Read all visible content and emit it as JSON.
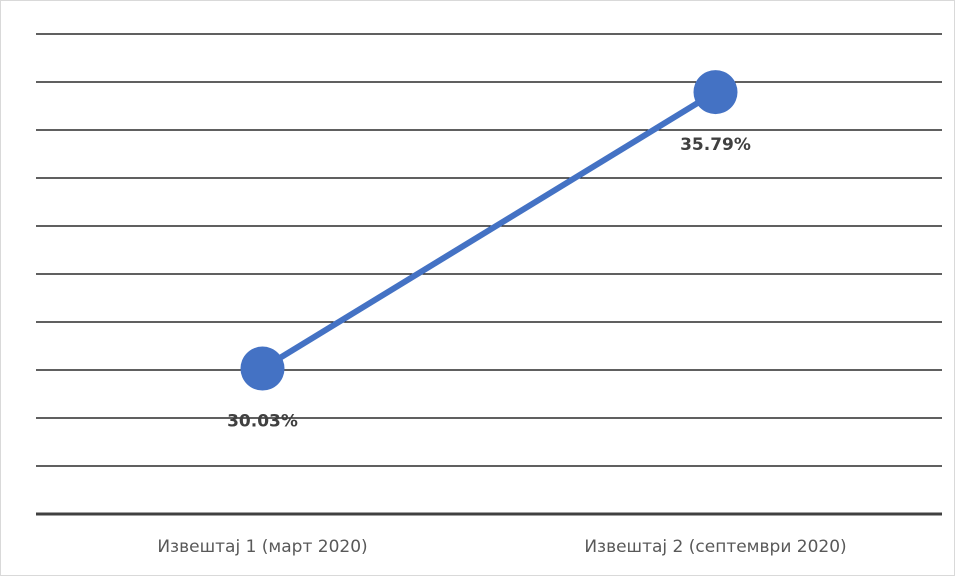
{
  "chart_data": {
    "type": "line",
    "categories": [
      "Извештај 1 (март 2020)",
      "Извештај 2 (септември 2020)"
    ],
    "series": [
      {
        "color": "#4472c4",
        "values": [
          30.03,
          35.79
        ],
        "value_labels": [
          "30.03%",
          "35.79%"
        ]
      }
    ],
    "ylim": [
      27,
      37
    ],
    "yticks": [
      27,
      28,
      29,
      30,
      31,
      32,
      33,
      34,
      35,
      36,
      37
    ],
    "grid": true
  }
}
